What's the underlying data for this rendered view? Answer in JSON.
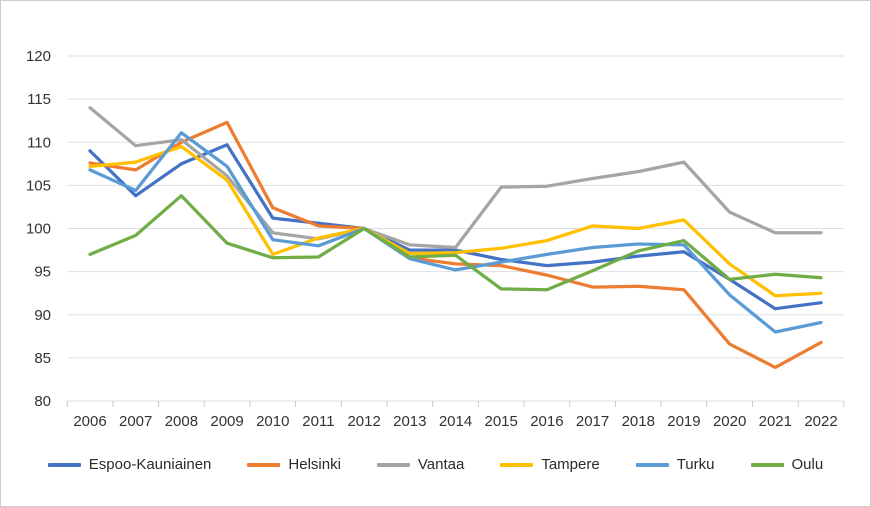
{
  "window": {
    "background_color": "#ffffff",
    "border_color": "#c9cdd1"
  },
  "chart_data": {
    "type": "line",
    "title": "",
    "xlabel": "",
    "ylabel": "",
    "ylim": [
      80,
      120
    ],
    "ytick_step": 5,
    "ytick_labels": [
      "80",
      "85",
      "90",
      "95",
      "100",
      "105",
      "110",
      "115",
      "120"
    ],
    "grid": true,
    "gridline_color": "#dbe0e6",
    "tick_color": "#c3c9cf",
    "axis_text_color": "#333333",
    "legend_position": "bottom",
    "categories": [
      "2006",
      "2007",
      "2008",
      "2009",
      "2010",
      "2011",
      "2012",
      "2013",
      "2014",
      "2015",
      "2016",
      "2017",
      "2018",
      "2019",
      "2020",
      "2021",
      "2022"
    ],
    "series": [
      {
        "name": "Espoo-Kauniainen",
        "color": "#4472C4",
        "values": [
          109.0,
          103.8,
          107.5,
          109.7,
          101.2,
          100.6,
          100.0,
          97.5,
          97.5,
          96.4,
          95.7,
          96.1,
          96.8,
          97.3,
          94.1,
          90.7,
          91.4
        ]
      },
      {
        "name": "Helsinki",
        "color": "#ED7D31",
        "values": [
          107.6,
          106.8,
          110.0,
          112.3,
          102.4,
          100.3,
          100.0,
          96.6,
          95.9,
          95.7,
          94.6,
          93.2,
          93.3,
          92.9,
          86.6,
          83.9,
          86.8
        ]
      },
      {
        "name": "Vantaa",
        "color": "#A5A5A5",
        "values": [
          114.0,
          109.6,
          110.3,
          106.1,
          99.5,
          98.8,
          100.0,
          98.1,
          97.8,
          104.8,
          104.9,
          105.8,
          106.6,
          107.7,
          101.9,
          99.5,
          99.5
        ]
      },
      {
        "name": "Tampere",
        "color": "#FFC000",
        "values": [
          107.2,
          107.7,
          109.5,
          105.6,
          97.0,
          98.9,
          100.0,
          97.1,
          97.2,
          97.7,
          98.6,
          100.3,
          100.0,
          101.0,
          95.9,
          92.2,
          92.5
        ]
      },
      {
        "name": "Turku",
        "color": "#5B9BD5",
        "values": [
          106.8,
          104.4,
          111.1,
          107.2,
          98.7,
          98.0,
          100.0,
          96.5,
          95.2,
          96.1,
          97.0,
          97.8,
          98.2,
          98.1,
          92.3,
          88.0,
          89.1
        ]
      },
      {
        "name": "Oulu",
        "color": "#70AD47",
        "values": [
          97.0,
          99.2,
          103.8,
          98.3,
          96.6,
          96.7,
          100.0,
          96.7,
          96.9,
          93.0,
          92.9,
          95.1,
          97.4,
          98.6,
          94.1,
          94.7,
          94.3
        ]
      }
    ]
  }
}
